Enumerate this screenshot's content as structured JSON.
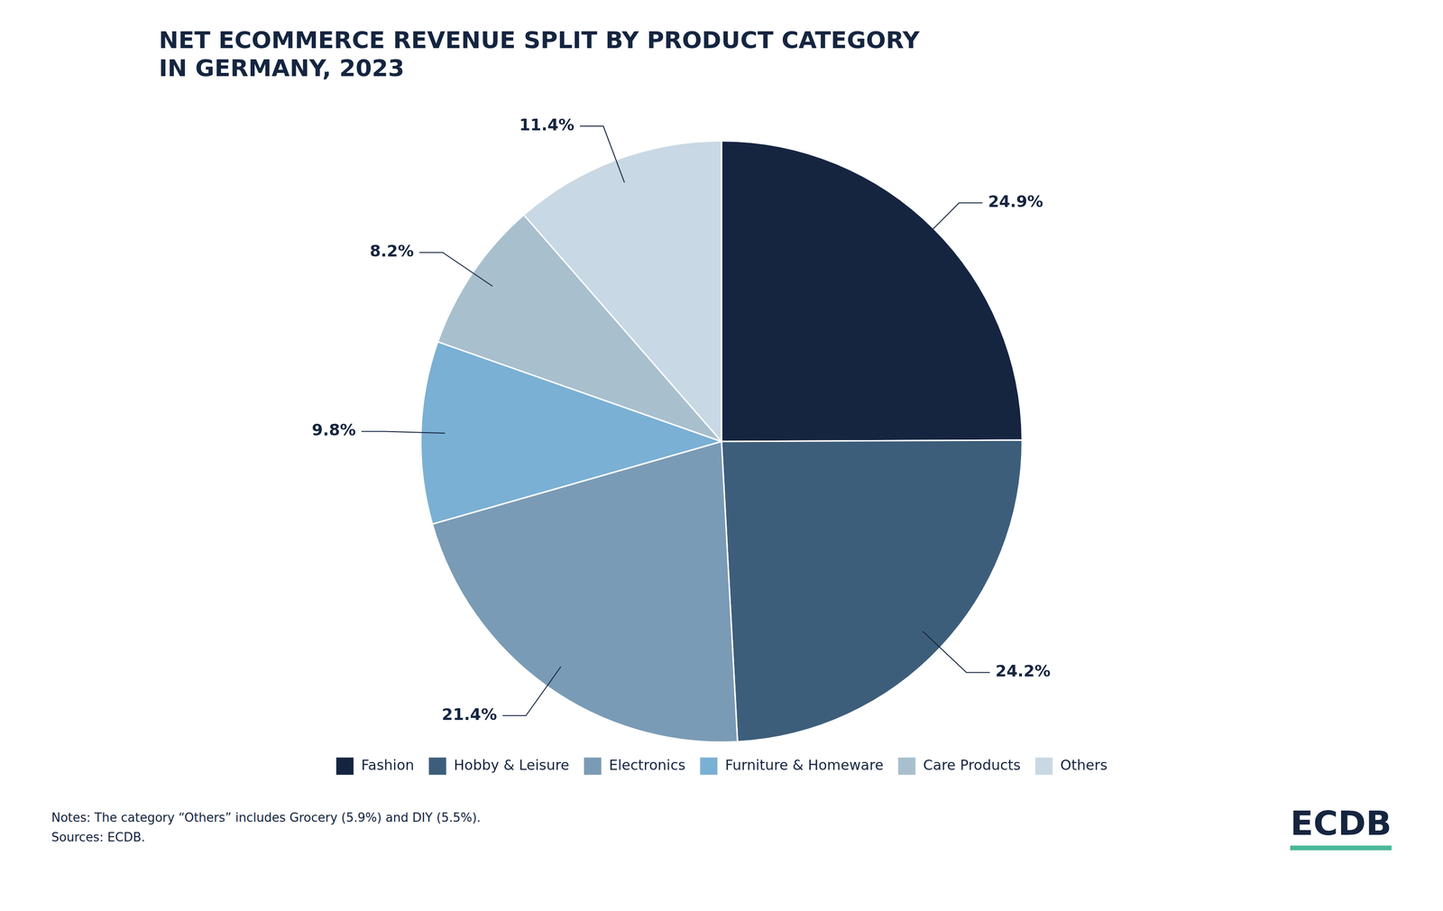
{
  "chart_data": {
    "type": "pie",
    "title": [
      "NET ECOMMERCE REVENUE SPLIT BY PRODUCT CATEGORY",
      "IN GERMANY, 2023"
    ],
    "categories": [
      "Fashion",
      "Hobby & Leisure",
      "Electronics",
      "Furniture & Homeware",
      "Care Products",
      "Others"
    ],
    "values": [
      24.9,
      24.2,
      21.4,
      9.8,
      8.2,
      11.4
    ],
    "value_labels": [
      "24.9%",
      "24.2%",
      "21.4%",
      "9.8%",
      "8.2%",
      "11.4%"
    ],
    "colors": [
      "#152540",
      "#3d5e7a",
      "#7a9bb5",
      "#7ab0d4",
      "#a8bfce",
      "#c8d8e4"
    ],
    "data_labels": true,
    "legend": "bottom",
    "annotations": [
      "Notes: The category “Others” includes Grocery (5.9%) and DIY (5.5%).",
      "Sources: ECDB.",
      "ECDB"
    ]
  }
}
